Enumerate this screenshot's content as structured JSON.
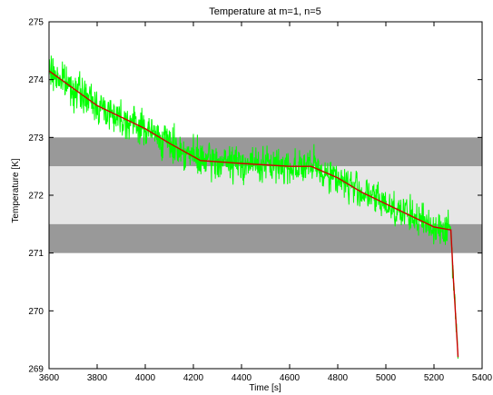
{
  "chart_data": {
    "type": "line",
    "title": "Temperature at m=1, n=5",
    "xlabel": "Time [s]",
    "ylabel": "Temperature [K]",
    "xlim": [
      3600,
      5400
    ],
    "ylim": [
      269,
      275
    ],
    "xticks": [
      "3600",
      "3800",
      "4000",
      "4200",
      "4400",
      "4600",
      "4800",
      "5000",
      "5200",
      "5400"
    ],
    "yticks": [
      "269",
      "270",
      "271",
      "272",
      "273",
      "274",
      "275"
    ],
    "grid": false,
    "legend": "none",
    "bands": [
      {
        "name": "upper-outer-band",
        "y": [
          272.5,
          273.0
        ],
        "color": "#999999"
      },
      {
        "name": "inner-band",
        "y": [
          271.5,
          272.5
        ],
        "color": "#e6e6e6"
      },
      {
        "name": "lower-outer-band",
        "y": [
          271.0,
          271.5
        ],
        "color": "#999999"
      }
    ],
    "series": [
      {
        "role": "noisy-measurement",
        "color": "#00ff00",
        "x": [
          3600,
          3700,
          3800,
          3900,
          4000,
          4100,
          4230,
          4400,
          4600,
          4690,
          4800,
          4900,
          5000,
          5100,
          5200,
          5270,
          5280,
          5290,
          5300
        ],
        "y": [
          274.15,
          273.85,
          273.55,
          273.35,
          273.15,
          272.9,
          272.6,
          272.55,
          272.5,
          272.5,
          272.3,
          272.05,
          271.85,
          271.65,
          271.45,
          271.4,
          270.6,
          269.9,
          269.2
        ],
        "noise_amplitude": 0.3
      },
      {
        "role": "smoothed-model",
        "color": "#cc0000",
        "x": [
          3600,
          3700,
          3800,
          3900,
          4000,
          4100,
          4230,
          4400,
          4600,
          4690,
          4800,
          4900,
          5000,
          5100,
          5200,
          5270,
          5280,
          5290,
          5300
        ],
        "y": [
          274.15,
          273.85,
          273.55,
          273.35,
          273.15,
          272.9,
          272.6,
          272.55,
          272.5,
          272.5,
          272.3,
          272.05,
          271.85,
          271.65,
          271.45,
          271.4,
          270.6,
          269.9,
          269.2
        ]
      }
    ]
  }
}
